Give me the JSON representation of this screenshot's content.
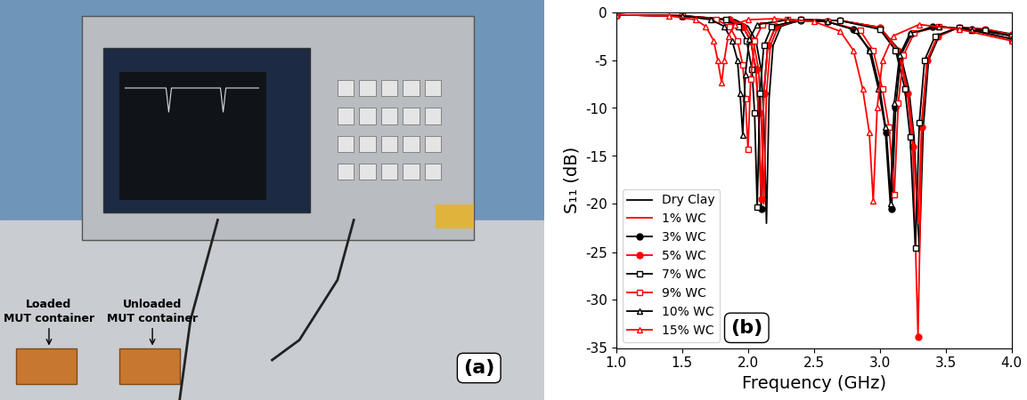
{
  "chart_data": {
    "type": "line",
    "x_label": "Frequency (GHz)",
    "y_label": "S₁₁ (dB)",
    "xlim": [
      1.0,
      4.0
    ],
    "xticks": [
      1.0,
      1.5,
      2.0,
      2.5,
      3.0,
      3.5,
      4.0
    ],
    "ylim": [
      -35,
      0
    ],
    "yticks": [
      -35,
      -30,
      -25,
      -20,
      -15,
      -10,
      -5,
      0
    ],
    "legend": "lower left",
    "grid": false,
    "annotations": [
      "(b)"
    ],
    "series": [
      {
        "name": "Dry Clay",
        "color": "#000000",
        "marker": "none",
        "x": [
          1.0,
          1.5,
          1.9,
          2.0,
          2.06,
          2.1,
          2.12,
          2.14,
          2.16,
          2.19,
          2.25,
          2.4,
          2.7,
          3.0,
          3.15,
          3.22,
          3.26,
          3.3,
          3.33,
          3.37,
          3.45,
          3.6,
          3.8,
          4.0
        ],
        "values": [
          -0.3,
          -0.4,
          -0.8,
          -1.5,
          -3.0,
          -6.0,
          -11.0,
          -22.0,
          -9.0,
          -3.5,
          -1.5,
          -0.8,
          -0.9,
          -1.6,
          -4.0,
          -8.0,
          -13.0,
          -25.0,
          -12.0,
          -5.0,
          -2.5,
          -1.6,
          -1.8,
          -2.3
        ]
      },
      {
        "name": "1% WC",
        "color": "#ff0000",
        "marker": "none",
        "x": [
          1.0,
          1.5,
          1.88,
          1.98,
          2.04,
          2.08,
          2.1,
          2.12,
          2.14,
          2.17,
          2.23,
          2.4,
          2.7,
          3.0,
          3.14,
          3.21,
          3.25,
          3.29,
          3.32,
          3.36,
          3.44,
          3.6,
          3.8,
          4.0
        ],
        "values": [
          -0.3,
          -0.4,
          -0.8,
          -1.5,
          -3.0,
          -6.0,
          -10.5,
          -20.0,
          -8.5,
          -3.5,
          -1.5,
          -0.8,
          -0.9,
          -1.6,
          -4.0,
          -8.0,
          -12.5,
          -22.0,
          -11.0,
          -5.0,
          -2.5,
          -1.6,
          -1.8,
          -2.4
        ]
      },
      {
        "name": "3% WC",
        "color": "#000000",
        "marker": "circle",
        "x": [
          1.0,
          1.5,
          1.86,
          1.96,
          2.02,
          2.06,
          2.08,
          2.1,
          2.12,
          2.15,
          2.21,
          2.4,
          2.6,
          2.8,
          2.93,
          3.0,
          3.05,
          3.09,
          3.12,
          3.16,
          3.24,
          3.4,
          3.7,
          4.0
        ],
        "values": [
          -0.3,
          -0.4,
          -0.8,
          -1.5,
          -3.0,
          -6.0,
          -10.5,
          -20.5,
          -8.5,
          -3.5,
          -1.5,
          -0.9,
          -1.0,
          -1.8,
          -4.0,
          -8.0,
          -12.5,
          -20.5,
          -10.0,
          -4.5,
          -2.3,
          -1.5,
          -1.8,
          -2.5
        ]
      },
      {
        "name": "5% WC",
        "color": "#ff0000",
        "marker": "circle",
        "x": [
          1.0,
          1.5,
          1.86,
          1.96,
          2.02,
          2.06,
          2.08,
          2.1,
          2.12,
          2.15,
          2.21,
          2.4,
          2.7,
          3.0,
          3.14,
          3.21,
          3.25,
          3.29,
          3.32,
          3.36,
          3.44,
          3.6,
          3.8,
          4.0
        ],
        "values": [
          -0.3,
          -0.4,
          -0.8,
          -1.5,
          -3.0,
          -6.0,
          -10.5,
          -19.5,
          -8.5,
          -3.5,
          -1.5,
          -0.8,
          -0.9,
          -1.6,
          -4.0,
          -8.5,
          -14.0,
          -33.8,
          -12.0,
          -5.0,
          -2.5,
          -1.6,
          -1.8,
          -2.4
        ]
      },
      {
        "name": "7% WC",
        "color": "#000000",
        "marker": "square_open",
        "x": [
          1.0,
          1.5,
          1.83,
          1.93,
          1.99,
          2.03,
          2.05,
          2.07,
          2.09,
          2.12,
          2.18,
          2.4,
          2.7,
          3.0,
          3.12,
          3.19,
          3.23,
          3.27,
          3.3,
          3.34,
          3.42,
          3.6,
          3.8,
          4.0
        ],
        "values": [
          -0.3,
          -0.4,
          -0.8,
          -1.5,
          -3.0,
          -6.0,
          -10.5,
          -20.3,
          -8.5,
          -3.5,
          -1.5,
          -0.8,
          -0.9,
          -1.8,
          -4.0,
          -8.0,
          -13.0,
          -24.6,
          -11.5,
          -5.0,
          -2.5,
          -1.6,
          -1.9,
          -2.5
        ]
      },
      {
        "name": "9% WC",
        "color": "#ff0000",
        "marker": "square_open",
        "x": [
          1.0,
          1.5,
          1.76,
          1.86,
          1.92,
          1.96,
          1.98,
          2.0,
          2.02,
          2.05,
          2.11,
          2.3,
          2.6,
          2.85,
          2.95,
          3.02,
          3.07,
          3.11,
          3.14,
          3.18,
          3.26,
          3.45,
          3.7,
          4.0
        ],
        "values": [
          -0.3,
          -0.4,
          -0.8,
          -1.5,
          -3.0,
          -5.5,
          -9.0,
          -14.3,
          -7.0,
          -3.0,
          -1.3,
          -0.8,
          -1.0,
          -1.9,
          -4.0,
          -8.0,
          -12.0,
          -19.0,
          -9.5,
          -4.5,
          -2.2,
          -1.5,
          -1.9,
          -2.8
        ]
      },
      {
        "name": "10% WC",
        "color": "#000000",
        "marker": "triangle_open",
        "x": [
          1.0,
          1.5,
          1.72,
          1.82,
          1.88,
          1.92,
          1.94,
          1.96,
          1.98,
          2.01,
          2.07,
          2.3,
          2.6,
          2.82,
          2.92,
          2.99,
          3.04,
          3.08,
          3.11,
          3.15,
          3.23,
          3.45,
          3.7,
          4.0
        ],
        "values": [
          -0.3,
          -0.4,
          -0.8,
          -1.5,
          -3.0,
          -5.0,
          -8.5,
          -12.8,
          -6.5,
          -2.8,
          -1.3,
          -0.8,
          -1.0,
          -1.9,
          -4.0,
          -8.0,
          -12.0,
          -20.0,
          -9.5,
          -4.5,
          -2.2,
          -1.5,
          -1.9,
          -2.8
        ]
      },
      {
        "name": "15% WC",
        "color": "#ff0000",
        "marker": "triangle_open",
        "x": [
          1.0,
          1.4,
          1.6,
          1.68,
          1.74,
          1.77,
          1.8,
          1.82,
          1.85,
          1.9,
          2.0,
          2.2,
          2.5,
          2.7,
          2.8,
          2.87,
          2.92,
          2.95,
          2.98,
          3.02,
          3.1,
          3.3,
          3.6,
          4.0
        ],
        "values": [
          -0.3,
          -0.4,
          -0.8,
          -1.5,
          -3.0,
          -5.0,
          -7.4,
          -5.0,
          -2.5,
          -1.3,
          -0.8,
          -0.7,
          -1.0,
          -2.0,
          -4.0,
          -8.0,
          -12.5,
          -19.7,
          -10.0,
          -5.0,
          -2.5,
          -1.3,
          -1.8,
          -3.0
        ]
      }
    ]
  },
  "photo": {
    "label": "(a)",
    "texts": [
      "Loaded\nMUT container",
      "Unloaded\nMUT container"
    ]
  }
}
